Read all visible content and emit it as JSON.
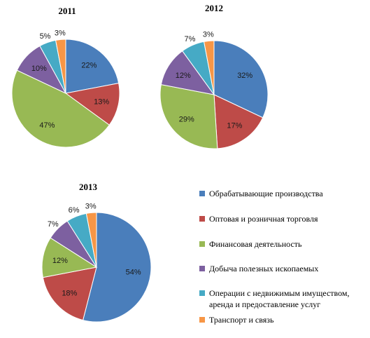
{
  "colors": {
    "manufacturing": "#4a7ebb",
    "trade": "#be4b48",
    "finance": "#98b954",
    "mining": "#7d60a0",
    "realestate": "#46aac5",
    "transport": "#f79646"
  },
  "legend": [
    {
      "key": "manufacturing",
      "lines": [
        "Обрабатывающие производства"
      ]
    },
    {
      "key": "trade",
      "lines": [
        "Оптовая  и розничная торговля"
      ]
    },
    {
      "key": "finance",
      "lines": [
        "Финансовая деятельность"
      ]
    },
    {
      "key": "mining",
      "lines": [
        "Добыча полезных  ископаемых"
      ]
    },
    {
      "key": "realestate",
      "lines": [
        "Операции с недвижимым имуществом,",
        "аренда и предоставление  услуг"
      ]
    },
    {
      "key": "transport",
      "lines": [
        "Транспорт и связь"
      ]
    }
  ],
  "chart_data": [
    {
      "type": "pie",
      "title": "2011",
      "categories": [
        "Обрабатывающие производства",
        "Оптовая  и розничная торговля",
        "Финансовая деятельность",
        "Добыча полезных  ископаемых",
        "Операции с недвижимым имуществом, аренда и предоставление  услуг",
        "Транспорт и связь"
      ],
      "keys": [
        "manufacturing",
        "trade",
        "finance",
        "mining",
        "realestate",
        "transport"
      ],
      "values": [
        22,
        13,
        47,
        10,
        5,
        3
      ],
      "labels": [
        "22%",
        "13%",
        "47%",
        "10%",
        "5%",
        "3%"
      ],
      "legend_position": "bottom-right"
    },
    {
      "type": "pie",
      "title": "2012",
      "categories": [
        "Обрабатывающие производства",
        "Оптовая  и розничная торговля",
        "Финансовая деятельность",
        "Добыча полезных  ископаемых",
        "Операции с недвижимым имуществом, аренда и предоставление  услуг",
        "Транспорт и связь"
      ],
      "keys": [
        "manufacturing",
        "trade",
        "finance",
        "mining",
        "realestate",
        "transport"
      ],
      "values": [
        32,
        17,
        29,
        12,
        7,
        3
      ],
      "labels": [
        "32%",
        "17%",
        "29%",
        "12%",
        "7%",
        "3%"
      ],
      "legend_position": "bottom-right"
    },
    {
      "type": "pie",
      "title": "2013",
      "categories": [
        "Обрабатывающие производства",
        "Оптовая  и розничная торговля",
        "Финансовая деятельность",
        "Добыча полезных  ископаемых",
        "Операции с недвижимым имуществом, аренда и предоставление  услуг",
        "Транспорт и связь"
      ],
      "keys": [
        "manufacturing",
        "trade",
        "finance",
        "mining",
        "realestate",
        "transport"
      ],
      "values": [
        54,
        18,
        12,
        7,
        6,
        3
      ],
      "labels": [
        "54%",
        "18%",
        "12%",
        "7%",
        "6%",
        "3%"
      ],
      "legend_position": "right"
    }
  ]
}
